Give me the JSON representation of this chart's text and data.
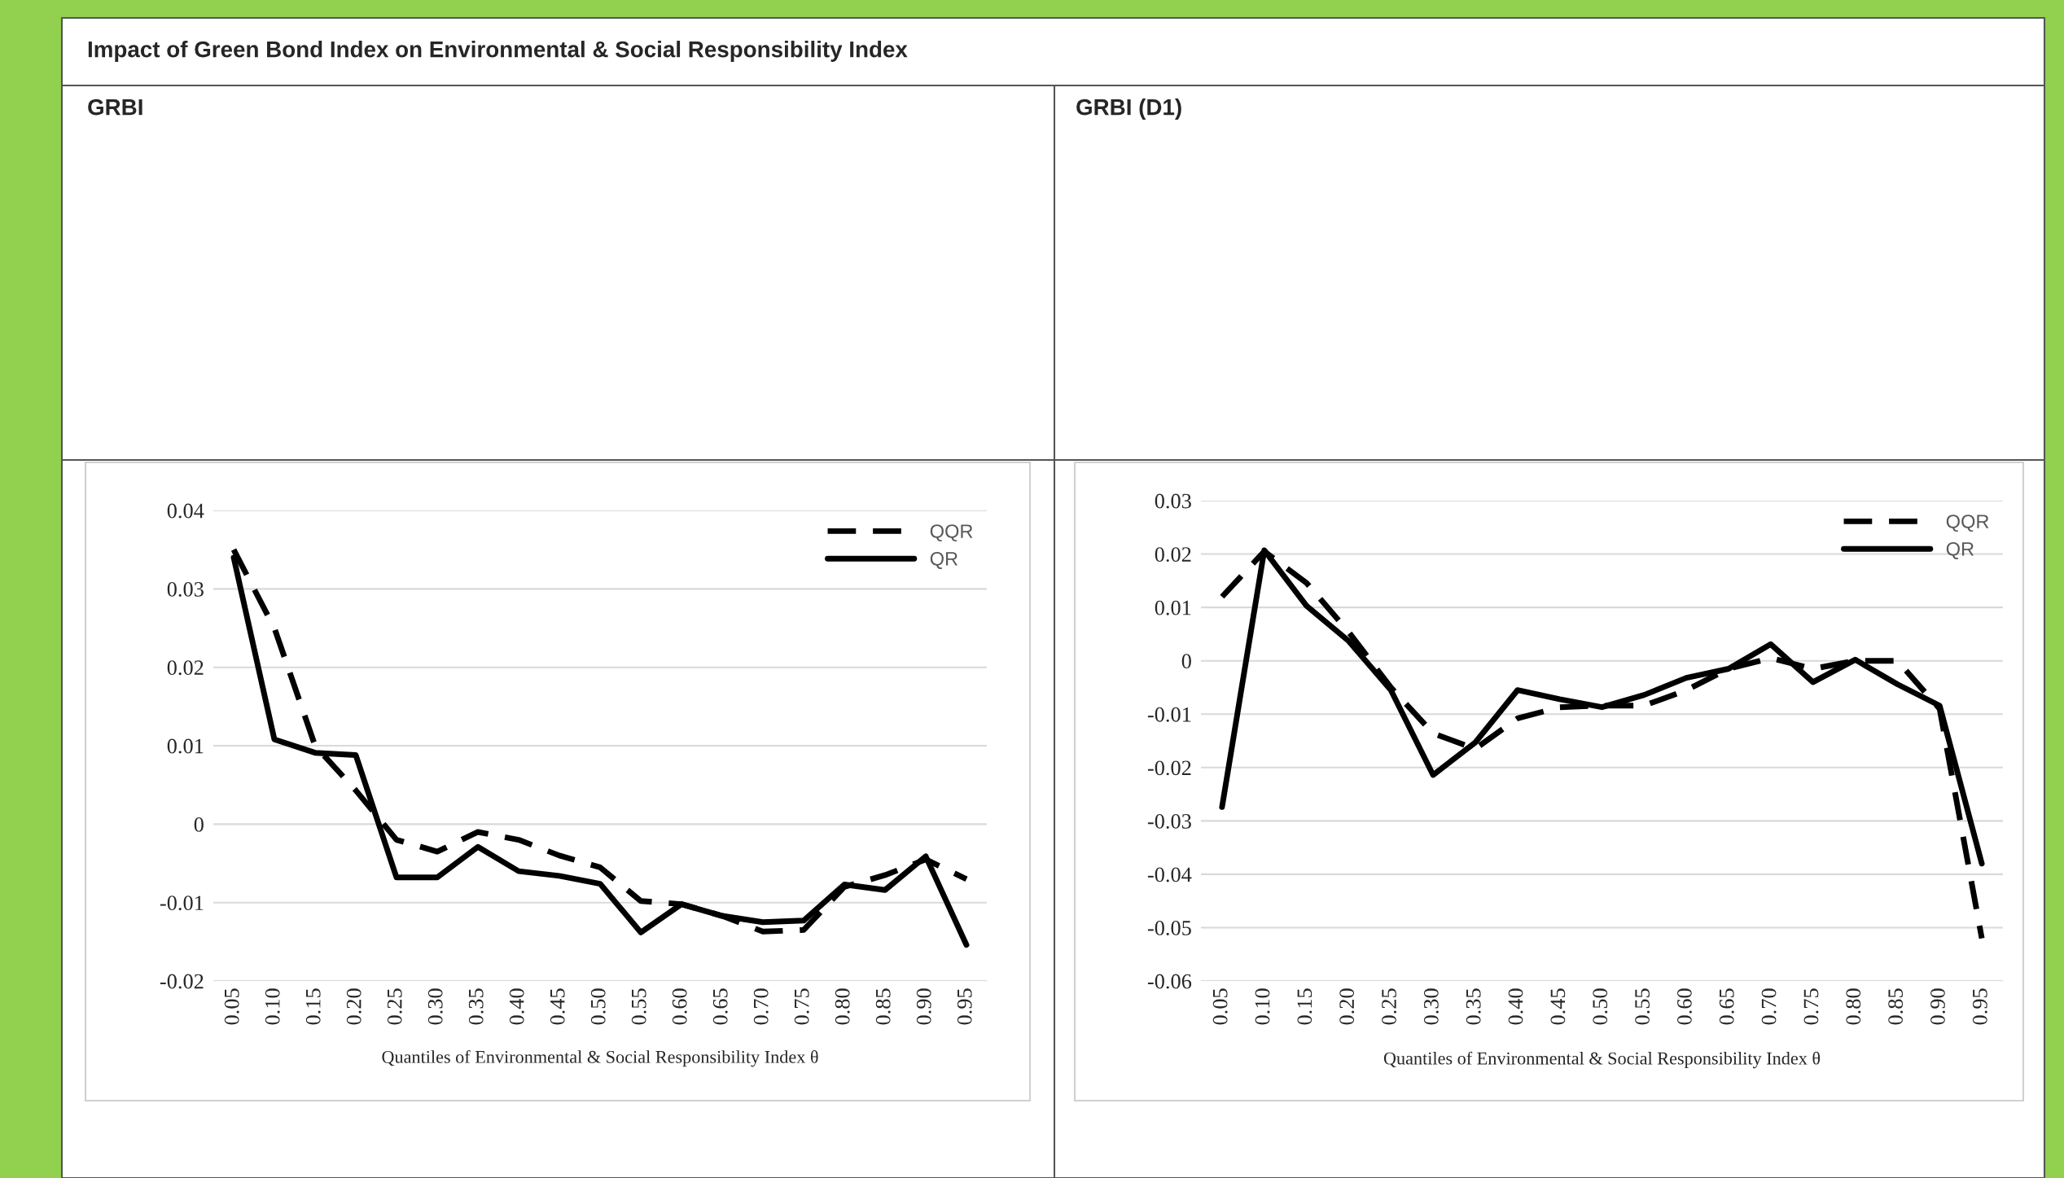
{
  "chart_data": [
    {
      "type": "other",
      "title": "Impact of Green Bond Index on Environmental & Social Responsibility Index"
    },
    {
      "type": "line",
      "title": "GRBI",
      "xlabel": "Quantiles of Environmental & Social Responsibility Index θ",
      "categories": [
        "0.05",
        "0.10",
        "0.15",
        "0.20",
        "0.25",
        "0.30",
        "0.35",
        "0.40",
        "0.45",
        "0.50",
        "0.55",
        "0.60",
        "0.65",
        "0.70",
        "0.75",
        "0.80",
        "0.85",
        "0.90",
        "0.95"
      ],
      "series": [
        {
          "name": "QQR",
          "color": "#000000",
          "line_style": "dashed",
          "values": [
            0.035,
            0.025,
            0.01,
            0.0043,
            -0.002,
            -0.0035,
            -0.001,
            -0.002,
            -0.004,
            -0.0055,
            -0.0098,
            -0.0102,
            -0.0117,
            -0.0137,
            -0.0135,
            -0.008,
            -0.0065,
            -0.0045,
            -0.007
          ]
        },
        {
          "name": "QR",
          "color": "#000000",
          "line_style": "solid",
          "values": [
            0.034,
            0.0108,
            0.0091,
            0.0088,
            -0.0068,
            -0.0068,
            -0.0029,
            -0.006,
            -0.0066,
            -0.0076,
            -0.0138,
            -0.0102,
            -0.0117,
            -0.0125,
            -0.0123,
            -0.0077,
            -0.0084,
            -0.0041,
            -0.0154
          ]
        }
      ],
      "ylim": [
        -0.02,
        0.04
      ],
      "yticks": [
        {
          "value": -0.02,
          "label": "-0.02"
        },
        {
          "value": -0.01,
          "label": "-0.01"
        },
        0,
        0.01,
        0.02,
        0.03,
        0.04
      ],
      "grid": "y",
      "legend": "top right",
      "marker": "none"
    },
    {
      "type": "line",
      "title": "GRBI (D1)",
      "xlabel": "Quantiles of Environmental & Social Responsibility Index θ",
      "categories": [
        "0.05",
        "0.10",
        "0.15",
        "0.20",
        "0.25",
        "0.30",
        "0.35",
        "0.40",
        "0.45",
        "0.50",
        "0.55",
        "0.60",
        "0.65",
        "0.70",
        "0.75",
        "0.80",
        "0.85",
        "0.90",
        "0.95"
      ],
      "series": [
        {
          "name": "QQR",
          "color": "#000000",
          "line_style": "dashed",
          "values": [
            0.012,
            0.0205,
            0.0146,
            0.0054,
            -0.005,
            -0.0136,
            -0.0165,
            -0.0108,
            -0.0087,
            -0.0084,
            -0.0084,
            -0.0055,
            -0.0015,
            0.0005,
            -0.0015,
            0.0,
            0.0,
            -0.009,
            -0.052
          ]
        },
        {
          "name": "QR",
          "color": "#000000",
          "line_style": "solid",
          "values": [
            -0.0274,
            0.0207,
            0.0103,
            0.0037,
            -0.0055,
            -0.0214,
            -0.0153,
            -0.0055,
            -0.0072,
            -0.0087,
            -0.0064,
            -0.0032,
            -0.0015,
            0.0031,
            -0.004,
            0.0002,
            -0.0044,
            -0.0084,
            -0.038
          ]
        }
      ],
      "ylim": [
        -0.06,
        0.03
      ],
      "yticks": [
        {
          "value": -0.06,
          "label": "-0.06"
        },
        {
          "value": -0.05,
          "label": "-0.05"
        },
        {
          "value": -0.04,
          "label": "-0.04"
        },
        {
          "value": -0.03,
          "label": "-0.03"
        },
        {
          "value": -0.02,
          "label": "-0.02"
        },
        {
          "value": -0.01,
          "label": "-0.01"
        },
        0,
        0.01,
        0.02,
        0.03
      ],
      "grid": "y",
      "legend": "top right",
      "marker": "none"
    }
  ]
}
